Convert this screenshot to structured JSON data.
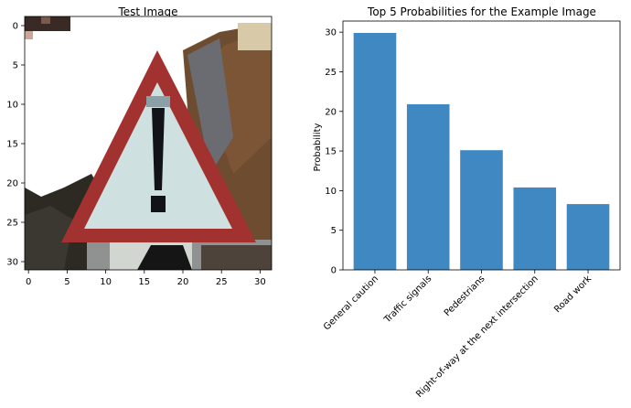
{
  "chart_data": [
    {
      "type": "image",
      "title": "Test Image",
      "x_ticks": [
        "0",
        "5",
        "10",
        "15",
        "20",
        "25",
        "30"
      ],
      "y_ticks": [
        "0",
        "5",
        "10",
        "15",
        "20",
        "25",
        "30"
      ],
      "xlim": [
        -0.5,
        31.5
      ],
      "ylim": [
        -0.5,
        31.5
      ],
      "depicts": "warning-triangle-sign-icon"
    },
    {
      "type": "bar",
      "title": "Top 5 Probabilities for the Example Image",
      "xlabel": "",
      "ylabel": "Probability",
      "categories": [
        "General caution",
        "Traffic signals",
        "Pedestrians",
        "Right-of-way at the next intersection",
        "Road work"
      ],
      "values": [
        29.9,
        20.9,
        15.1,
        10.4,
        8.3
      ],
      "y_ticks": [
        "0",
        "5",
        "10",
        "15",
        "20",
        "25",
        "30"
      ],
      "ylim": [
        0,
        31.4
      ],
      "bar_color": "#3f88c2",
      "grid": false
    }
  ]
}
